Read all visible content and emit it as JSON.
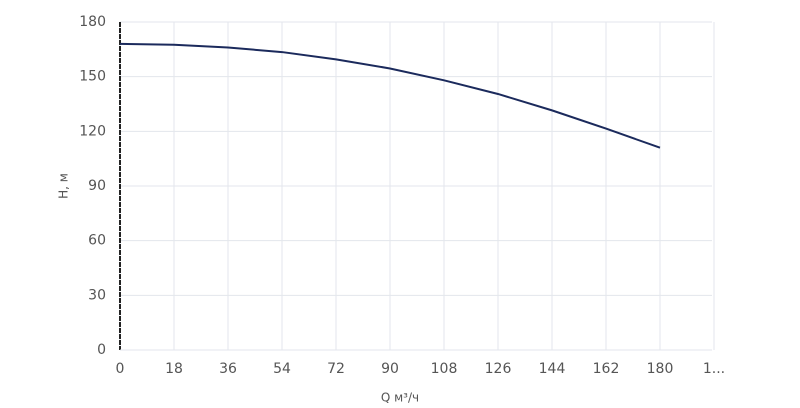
{
  "chart_data": {
    "type": "line",
    "x_label": "Q м³/ч",
    "y_label": "H, м",
    "x": [
      0,
      18,
      36,
      54,
      72,
      90,
      108,
      126,
      144,
      162,
      180
    ],
    "series": [
      {
        "name": "H",
        "color": "#1b2a5c",
        "values": [
          168,
          167.5,
          166,
          163.5,
          159.5,
          154.5,
          148,
          140.5,
          131.5,
          121.5,
          111
        ]
      }
    ],
    "xlim": [
      0,
      198
    ],
    "xticks": [
      0,
      18,
      36,
      54,
      72,
      90,
      108,
      126,
      144,
      162,
      180,
      {
        "value": 198,
        "label": "1..."
      }
    ],
    "ylim": [
      0,
      180
    ],
    "yticks": [
      0,
      30,
      60,
      90,
      120,
      150,
      180
    ],
    "grid": true
  }
}
